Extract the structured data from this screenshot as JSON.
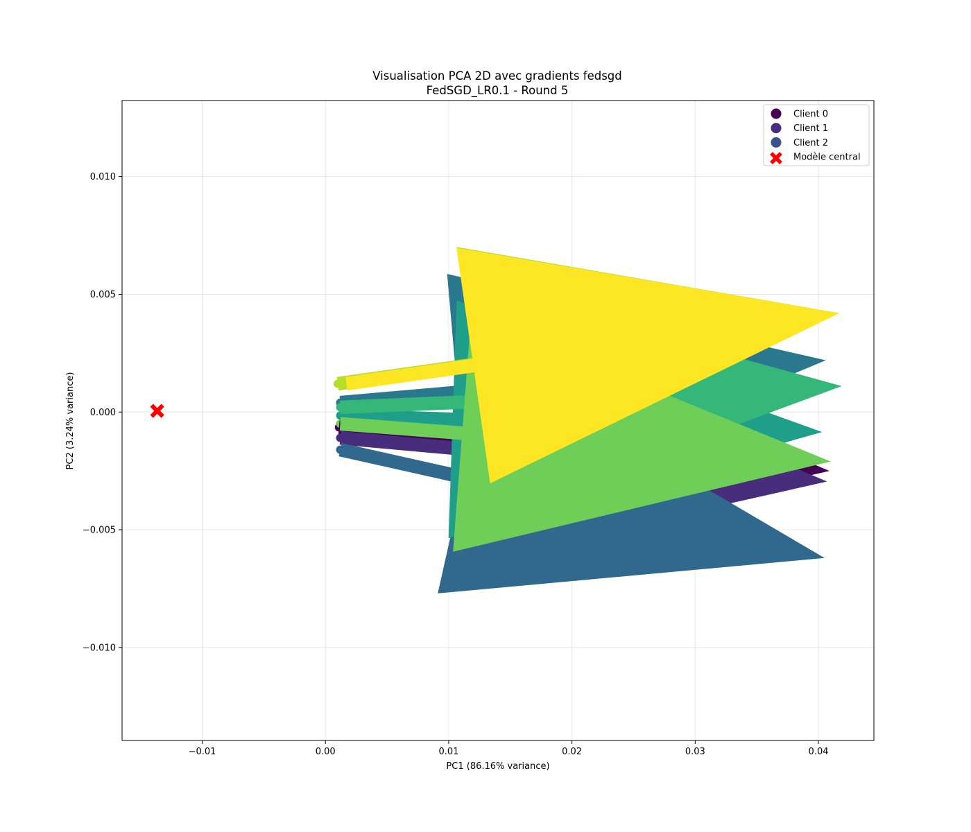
{
  "chart_data": {
    "type": "scatter",
    "title": "Visualisation PCA 2D avec gradients fedsgd",
    "subtitle": "FedSGD_LR0.1 - Round 5",
    "xlabel": "PC1 (86.16% variance)",
    "ylabel": "PC2 (3.24% variance)",
    "xlim": [
      -0.0165,
      0.0445
    ],
    "ylim": [
      -0.01395,
      0.01323
    ],
    "grid": true,
    "legend_position": "top-right",
    "x_ticks": [
      -0.01,
      0.0,
      0.01,
      0.02,
      0.03,
      0.04
    ],
    "x_tick_labels": [
      "−0.01",
      "0.00",
      "0.01",
      "0.02",
      "0.03",
      "0.04"
    ],
    "y_ticks": [
      -0.01,
      -0.005,
      0.0,
      0.005,
      0.01
    ],
    "y_tick_labels": [
      "−0.010",
      "−0.005",
      "0.000",
      "0.005",
      "0.010"
    ],
    "legend": [
      {
        "label": "Client 0",
        "color": "#440154",
        "marker": "circle"
      },
      {
        "label": "Client 1",
        "color": "#472d7b",
        "marker": "circle"
      },
      {
        "label": "Client 2",
        "color": "#3b528b",
        "marker": "circle"
      },
      {
        "label": "Modèle central",
        "color": "#ff0000",
        "marker": "x"
      }
    ],
    "central_model": {
      "x": -0.01365,
      "y": 5e-05,
      "color": "#ff0000"
    },
    "clients": [
      {
        "x": 0.0011,
        "y": -0.00065,
        "dx": 0.0398,
        "dy": -0.00185,
        "color": "#440154"
      },
      {
        "x": 0.0012,
        "y": -0.0011,
        "dx": 0.0395,
        "dy": -0.00185,
        "color": "#472d7b"
      },
      {
        "x": 0.0012,
        "y": -0.0016,
        "dx": 0.0393,
        "dy": -0.0046,
        "color": "#31688e"
      },
      {
        "x": 0.0012,
        "y": 0.0004,
        "dx": 0.0394,
        "dy": 0.0018,
        "color": "#2a788e"
      },
      {
        "x": 0.0012,
        "y": -0.00015,
        "dx": 0.0391,
        "dy": -0.0007,
        "color": "#1f9e89"
      },
      {
        "x": 0.0012,
        "y": 0.0002,
        "dx": 0.0407,
        "dy": 0.0009,
        "color": "#35b779"
      },
      {
        "x": 0.0012,
        "y": -0.0005,
        "dx": 0.0398,
        "dy": -0.0016,
        "color": "#6ece58"
      },
      {
        "x": 0.001,
        "y": 0.0012,
        "dx": 0.0407,
        "dy": 0.003,
        "color": "#b5de2b"
      },
      {
        "x": 0.0017,
        "y": 0.0012,
        "dx": 0.04,
        "dy": 0.003,
        "color": "#fde725"
      }
    ],
    "arrow_style": {
      "width": 0.0011,
      "head_width": 0.0193,
      "head_length": 0.03
    }
  }
}
